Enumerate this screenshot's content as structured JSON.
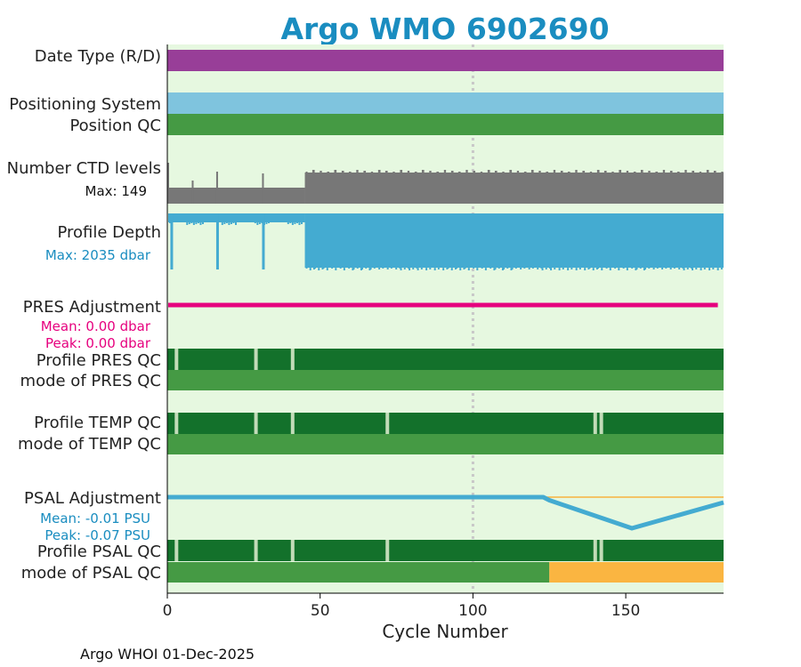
{
  "chart_data": {
    "type": "float-qc-summary",
    "title": "Argo WMO 6902690",
    "xlabel": "Cycle Number",
    "xlim": [
      0,
      182
    ],
    "xticks": [
      0,
      50,
      100,
      150
    ],
    "footer": "Argo WHOI 01-Dec-2025",
    "marker_cycle": 100,
    "last_cycle": 181,
    "colors": {
      "title": "#1a8dc0",
      "background_band": "#e6f8e0",
      "date_type": "#983e98",
      "positioning": "#7fc4de",
      "qc_good": "#459a44",
      "qc_dark": "#13712b",
      "qc_gap": "#c2dcb8",
      "ctd_levels": "#777777",
      "profile_depth": "#44abd1",
      "pres_adjustment": "#e6007e",
      "psal_adjustment": "#44abd1",
      "psal_ref_line": "#f7b23e",
      "psal_qc_flag": "#fab541",
      "marker_line": "#c8c8c8"
    },
    "labels": {
      "date_type": "Date Type (R/D)",
      "positioning_system": "Positioning System",
      "position_qc": "Position QC",
      "number_ctd_levels": "Number CTD levels",
      "ctd_max": "Max: 149",
      "profile_depth": "Profile Depth",
      "depth_max": "Max: 2035 dbar",
      "pres_adjustment": "PRES Adjustment",
      "pres_mean": "Mean: 0.00 dbar",
      "pres_peak": "Peak: 0.00 dbar",
      "profile_pres_qc": "Profile PRES QC",
      "mode_pres_qc": "mode of PRES QC",
      "profile_temp_qc": "Profile TEMP QC",
      "mode_temp_qc": "mode of TEMP QC",
      "psal_adjustment": "PSAL Adjustment",
      "psal_mean": "Mean: -0.01 PSU",
      "psal_peak": "Peak: -0.07 PSU",
      "profile_psal_qc": "Profile PSAL QC",
      "mode_psal_qc": "mode of PSAL QC"
    },
    "series": {
      "ctd_levels_max": 149,
      "ctd_levels_low_until_cycle": 45,
      "profile_depth_max_dbar": 2035,
      "profile_depth_shallow_cycles": [
        1,
        16,
        31
      ],
      "profile_depth_shallow_segment_until_cycle": 45,
      "pres_adjustment_mean_dbar": 0.0,
      "pres_adjustment_peak_dbar": 0.0,
      "psal_adjustment_mean_psu": -0.01,
      "psal_adjustment_peak_psu": -0.07,
      "psal_adjustment_curve": [
        {
          "cycle": 0,
          "psu": 0.0
        },
        {
          "cycle": 123,
          "psu": 0.0
        },
        {
          "cycle": 125,
          "psu": -0.007
        },
        {
          "cycle": 152,
          "psu": -0.07
        },
        {
          "cycle": 182,
          "psu": -0.012
        }
      ],
      "profile_pres_qc_gaps": [
        3,
        29,
        41
      ],
      "profile_temp_qc_gaps": [
        3,
        29,
        41,
        72,
        140,
        142
      ],
      "profile_psal_qc_gaps": [
        3,
        29,
        41,
        72,
        140,
        142
      ],
      "psal_mode_flag_from_cycle": 125
    }
  }
}
